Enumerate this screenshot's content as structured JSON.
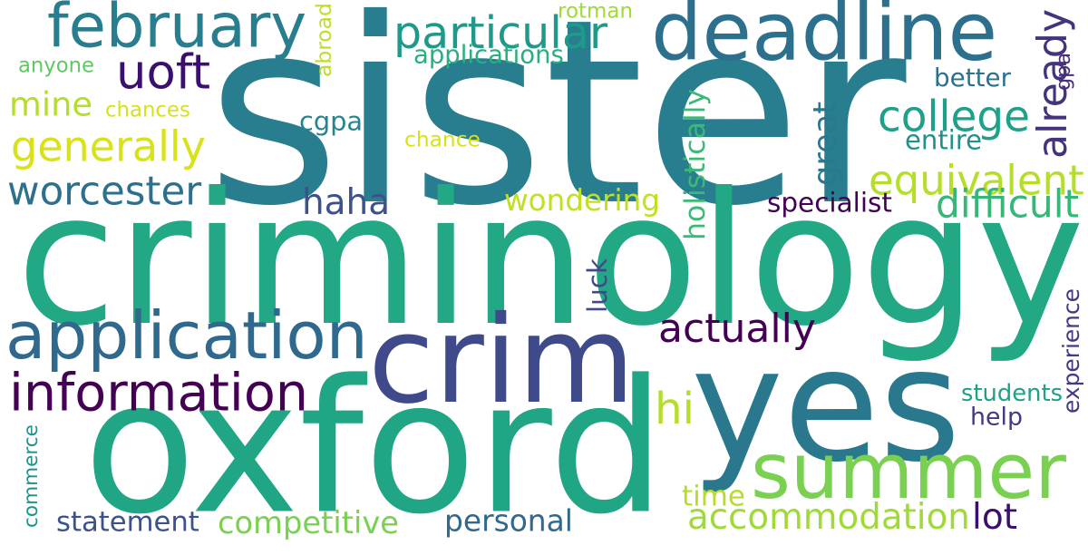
{
  "word_cloud": {
    "words": [
      {
        "key": "sister",
        "text": "sister",
        "color": "#287d8e",
        "orientation": "horizontal"
      },
      {
        "key": "criminology",
        "text": "criminology",
        "color": "#22a884",
        "orientation": "horizontal"
      },
      {
        "key": "oxford",
        "text": "oxford",
        "color": "#21a685",
        "orientation": "horizontal"
      },
      {
        "key": "yes",
        "text": "yes",
        "color": "#2a788e",
        "orientation": "horizontal"
      },
      {
        "key": "crim",
        "text": "crim",
        "color": "#3e4a89",
        "orientation": "horizontal"
      },
      {
        "key": "summer",
        "text": "summer",
        "color": "#7ad151",
        "orientation": "horizontal"
      },
      {
        "key": "deadline",
        "text": "deadline",
        "color": "#2d708e",
        "orientation": "horizontal"
      },
      {
        "key": "february",
        "text": "february",
        "color": "#287d8e",
        "orientation": "horizontal"
      },
      {
        "key": "application",
        "text": "application",
        "color": "#30698e",
        "orientation": "horizontal"
      },
      {
        "key": "information",
        "text": "information",
        "color": "#440154",
        "orientation": "horizontal"
      },
      {
        "key": "particular",
        "text": "particular",
        "color": "#1f9a8a",
        "orientation": "horizontal"
      },
      {
        "key": "accommodation",
        "text": "accommodation",
        "color": "#a0da39",
        "orientation": "horizontal"
      },
      {
        "key": "equivalent",
        "text": "equivalent",
        "color": "#b5de2b",
        "orientation": "horizontal"
      },
      {
        "key": "college",
        "text": "college",
        "color": "#1fa088",
        "orientation": "horizontal"
      },
      {
        "key": "generally",
        "text": "generally",
        "color": "#d8e219",
        "orientation": "horizontal"
      },
      {
        "key": "worcester",
        "text": "worcester",
        "color": "#2d708e",
        "orientation": "horizontal"
      },
      {
        "key": "actually",
        "text": "actually",
        "color": "#440154",
        "orientation": "horizontal"
      },
      {
        "key": "already",
        "text": "already",
        "color": "#46337e",
        "orientation": "vertical"
      },
      {
        "key": "uoft",
        "text": "uoft",
        "color": "#3b0f70",
        "orientation": "horizontal"
      },
      {
        "key": "mine",
        "text": "mine",
        "color": "#b5de2b",
        "orientation": "horizontal"
      },
      {
        "key": "haha",
        "text": "haha",
        "color": "#3b528b",
        "orientation": "horizontal"
      },
      {
        "key": "wondering",
        "text": "wondering",
        "color": "#c2df23",
        "orientation": "horizontal"
      },
      {
        "key": "difficult",
        "text": "difficult",
        "color": "#35b779",
        "orientation": "horizontal"
      },
      {
        "key": "competitive",
        "text": "competitive",
        "color": "#7ad151",
        "orientation": "horizontal"
      },
      {
        "key": "statement",
        "text": "statement",
        "color": "#3b528b",
        "orientation": "horizontal"
      },
      {
        "key": "personal",
        "text": "personal",
        "color": "#31688e",
        "orientation": "horizontal"
      },
      {
        "key": "lot",
        "text": "lot",
        "color": "#3b0f70",
        "orientation": "horizontal"
      },
      {
        "key": "cgpa",
        "text": "cgpa",
        "color": "#25858e",
        "orientation": "horizontal"
      },
      {
        "key": "hi",
        "text": "hi",
        "color": "#b5de2b",
        "orientation": "horizontal"
      },
      {
        "key": "great",
        "text": "great",
        "color": "#2a788e",
        "orientation": "vertical"
      },
      {
        "key": "specialist",
        "text": "specialist",
        "color": "#440154",
        "orientation": "horizontal"
      },
      {
        "key": "applications",
        "text": "applications",
        "color": "#29af7f",
        "orientation": "horizontal"
      },
      {
        "key": "chances",
        "text": "chances",
        "color": "#d8e219",
        "orientation": "horizontal"
      },
      {
        "key": "chance",
        "text": "chance",
        "color": "#d8e219",
        "orientation": "horizontal"
      },
      {
        "key": "anyone",
        "text": "anyone",
        "color": "#5ec962",
        "orientation": "horizontal"
      },
      {
        "key": "rotman",
        "text": "rotman",
        "color": "#a0da39",
        "orientation": "horizontal"
      },
      {
        "key": "abroad",
        "text": "abroad",
        "color": "#bddf26",
        "orientation": "vertical"
      },
      {
        "key": "holistically",
        "text": "holistically",
        "color": "#3aba76",
        "orientation": "vertical"
      },
      {
        "key": "luck",
        "text": "luck",
        "color": "#3e4a89",
        "orientation": "vertical"
      },
      {
        "key": "better",
        "text": "better",
        "color": "#2d708e",
        "orientation": "horizontal"
      },
      {
        "key": "gpa",
        "text": "gpa",
        "color": "#472d7b",
        "orientation": "vertical"
      },
      {
        "key": "entire",
        "text": "entire",
        "color": "#21918c",
        "orientation": "horizontal"
      },
      {
        "key": "time",
        "text": "time",
        "color": "#b5de2b",
        "orientation": "horizontal"
      },
      {
        "key": "students",
        "text": "students",
        "color": "#1fa188",
        "orientation": "horizontal"
      },
      {
        "key": "help",
        "text": "help",
        "color": "#443a83",
        "orientation": "horizontal"
      },
      {
        "key": "experience",
        "text": "experience",
        "color": "#443a83",
        "orientation": "vertical"
      },
      {
        "key": "commerce",
        "text": "commerce",
        "color": "#21918c",
        "orientation": "vertical"
      }
    ]
  }
}
